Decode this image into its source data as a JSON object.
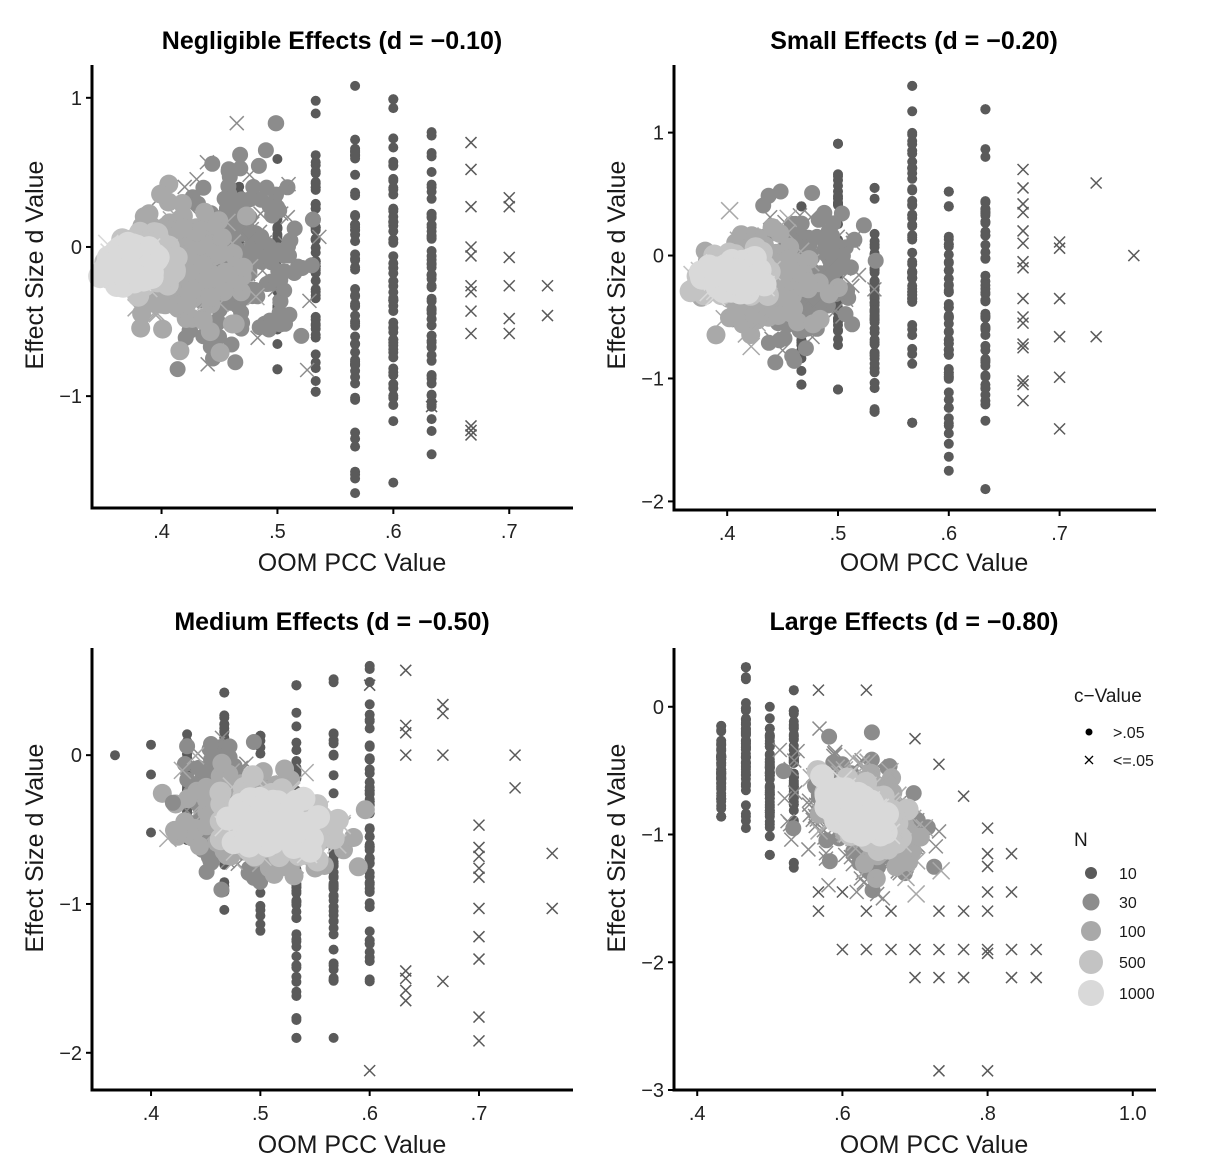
{
  "chart_data": [
    {
      "type": "scatter",
      "title": "Negligible Effects (d = −0.10)",
      "xlabel": "OOM PCC Value",
      "ylabel": "Effect Size d Value",
      "xlim": [
        0.34,
        0.755
      ],
      "ylim": [
        -1.75,
        1.22
      ],
      "xticks": [
        0.4,
        0.5,
        0.6,
        0.7
      ],
      "xtick_labels": [
        ".4",
        ".5",
        ".6",
        ".7"
      ],
      "yticks": [
        1,
        0,
        -1
      ],
      "ytick_labels": [
        "1",
        "0",
        "−1"
      ],
      "grid": false,
      "clusters": [
        {
          "n": 10,
          "sig": false,
          "x": 0.533,
          "y_range": [
            -0.97,
            0.98
          ]
        },
        {
          "n": 10,
          "sig": false,
          "x": 0.567,
          "y_range": [
            -1.65,
            1.08
          ]
        },
        {
          "n": 10,
          "sig": false,
          "x": 0.6,
          "y_range": [
            -1.58,
            0.99
          ]
        },
        {
          "n": 10,
          "sig": false,
          "x": 0.633,
          "y_range": [
            -1.39,
            0.77
          ]
        },
        {
          "n": 10,
          "sig": false,
          "x": 0.5,
          "y_range": [
            -0.82,
            0.59
          ]
        },
        {
          "n": 10,
          "sig": false,
          "x": 0.467,
          "y_range": [
            -0.4,
            0.51
          ]
        },
        {
          "n": 30,
          "sig": false,
          "cx": 0.47,
          "cy": -0.05,
          "rx": 0.045,
          "ry": 0.55
        },
        {
          "n": 100,
          "sig": false,
          "cx": 0.42,
          "cy": -0.1,
          "rx": 0.04,
          "ry": 0.38
        },
        {
          "n": 500,
          "sig": false,
          "cx": 0.385,
          "cy": -0.1,
          "rx": 0.025,
          "ry": 0.15
        },
        {
          "n": 1000,
          "sig": false,
          "cx": 0.375,
          "cy": -0.1,
          "rx": 0.018,
          "ry": 0.1
        }
      ],
      "crosses": [
        {
          "x": 0.667,
          "y": 0.7
        },
        {
          "x": 0.667,
          "y": 0.52
        },
        {
          "x": 0.667,
          "y": 0.27
        },
        {
          "x": 0.667,
          "y": 0.0
        },
        {
          "x": 0.667,
          "y": -0.06
        },
        {
          "x": 0.667,
          "y": -0.26
        },
        {
          "x": 0.667,
          "y": -0.3
        },
        {
          "x": 0.667,
          "y": -0.43
        },
        {
          "x": 0.667,
          "y": -0.58
        },
        {
          "x": 0.667,
          "y": -1.2
        },
        {
          "x": 0.667,
          "y": -1.23
        },
        {
          "x": 0.667,
          "y": -1.26
        },
        {
          "x": 0.7,
          "y": 0.33
        },
        {
          "x": 0.7,
          "y": 0.27
        },
        {
          "x": 0.7,
          "y": -0.07
        },
        {
          "x": 0.7,
          "y": -0.26
        },
        {
          "x": 0.7,
          "y": -0.48
        },
        {
          "x": 0.7,
          "y": -0.58
        },
        {
          "x": 0.733,
          "y": -0.26
        },
        {
          "x": 0.733,
          "y": -0.46
        },
        {
          "x": 0.633,
          "y": -1.07
        }
      ]
    },
    {
      "type": "scatter",
      "title": "Small Effects (d = −0.20)",
      "xlabel": "OOM PCC Value",
      "ylabel": "Effect Size d Value",
      "xlim": [
        0.352,
        0.787
      ],
      "ylim": [
        -2.07,
        1.55
      ],
      "xticks": [
        0.4,
        0.5,
        0.6,
        0.7
      ],
      "xtick_labels": [
        ".4",
        ".5",
        ".6",
        ".7"
      ],
      "yticks": [
        1,
        0,
        -1,
        -2
      ],
      "ytick_labels": [
        "1",
        "0",
        "−1",
        "−2"
      ],
      "grid": false,
      "clusters": [
        {
          "n": 10,
          "sig": false,
          "x": 0.533,
          "y_range": [
            -1.27,
            0.55
          ]
        },
        {
          "n": 10,
          "sig": false,
          "x": 0.567,
          "y_range": [
            -1.36,
            1.38
          ]
        },
        {
          "n": 10,
          "sig": false,
          "x": 0.6,
          "y_range": [
            -1.75,
            0.52
          ]
        },
        {
          "n": 10,
          "sig": false,
          "x": 0.633,
          "y_range": [
            -1.9,
            1.19
          ]
        },
        {
          "n": 10,
          "sig": false,
          "x": 0.5,
          "y_range": [
            -1.09,
            0.91
          ]
        },
        {
          "n": 10,
          "sig": false,
          "x": 0.467,
          "y_range": [
            -1.05,
            0.4
          ]
        },
        {
          "n": 30,
          "sig": false,
          "cx": 0.47,
          "cy": -0.2,
          "rx": 0.04,
          "ry": 0.5
        },
        {
          "n": 100,
          "sig": false,
          "cx": 0.43,
          "cy": -0.18,
          "rx": 0.045,
          "ry": 0.35
        },
        {
          "n": 500,
          "sig": false,
          "cx": 0.41,
          "cy": -0.18,
          "rx": 0.028,
          "ry": 0.15
        },
        {
          "n": 1000,
          "sig": false,
          "cx": 0.405,
          "cy": -0.18,
          "rx": 0.018,
          "ry": 0.1
        }
      ],
      "crosses": [
        {
          "x": 0.667,
          "y": 0.7
        },
        {
          "x": 0.667,
          "y": 0.55
        },
        {
          "x": 0.667,
          "y": 0.42
        },
        {
          "x": 0.667,
          "y": 0.35
        },
        {
          "x": 0.667,
          "y": 0.2
        },
        {
          "x": 0.667,
          "y": 0.1
        },
        {
          "x": 0.667,
          "y": -0.05
        },
        {
          "x": 0.667,
          "y": -0.1
        },
        {
          "x": 0.667,
          "y": -0.35
        },
        {
          "x": 0.667,
          "y": -0.5
        },
        {
          "x": 0.667,
          "y": -0.55
        },
        {
          "x": 0.667,
          "y": -0.72
        },
        {
          "x": 0.667,
          "y": -0.75
        },
        {
          "x": 0.667,
          "y": -1.02
        },
        {
          "x": 0.667,
          "y": -1.05
        },
        {
          "x": 0.667,
          "y": -1.18
        },
        {
          "x": 0.7,
          "y": 0.11
        },
        {
          "x": 0.7,
          "y": 0.06
        },
        {
          "x": 0.7,
          "y": -0.35
        },
        {
          "x": 0.7,
          "y": -0.66
        },
        {
          "x": 0.7,
          "y": -0.99
        },
        {
          "x": 0.7,
          "y": -1.41
        },
        {
          "x": 0.733,
          "y": 0.59
        },
        {
          "x": 0.733,
          "y": -0.66
        },
        {
          "x": 0.767,
          "y": 0.0
        }
      ]
    },
    {
      "type": "scatter",
      "title": "Medium Effects (d = −0.50)",
      "xlabel": "OOM PCC Value",
      "ylabel": "Effect Size d Value",
      "xlim": [
        0.346,
        0.786
      ],
      "ylim": [
        -2.25,
        0.72
      ],
      "xticks": [
        0.4,
        0.5,
        0.6,
        0.7
      ],
      "xtick_labels": [
        ".4",
        ".5",
        ".6",
        ".7"
      ],
      "yticks": [
        0,
        -1,
        -2
      ],
      "ytick_labels": [
        "0",
        "−1",
        "−2"
      ],
      "grid": false,
      "clusters": [
        {
          "n": 10,
          "sig": false,
          "x": 0.433,
          "y_range": [
            -0.57,
            0.14
          ]
        },
        {
          "n": 10,
          "sig": false,
          "x": 0.467,
          "y_range": [
            -1.04,
            0.42
          ]
        },
        {
          "n": 10,
          "sig": false,
          "x": 0.5,
          "y_range": [
            -1.18,
            0.13
          ]
        },
        {
          "n": 10,
          "sig": false,
          "x": 0.533,
          "y_range": [
            -1.9,
            0.47
          ]
        },
        {
          "n": 10,
          "sig": false,
          "x": 0.567,
          "y_range": [
            -1.9,
            0.51
          ]
        },
        {
          "n": 10,
          "sig": false,
          "x": 0.6,
          "y_range": [
            -1.52,
            0.6
          ]
        },
        {
          "n": 30,
          "sig": false,
          "cx": 0.47,
          "cy": -0.35,
          "rx": 0.03,
          "ry": 0.35
        },
        {
          "n": 100,
          "sig": false,
          "cx": 0.5,
          "cy": -0.45,
          "rx": 0.06,
          "ry": 0.3
        },
        {
          "n": 500,
          "sig": false,
          "cx": 0.51,
          "cy": -0.45,
          "rx": 0.04,
          "ry": 0.18
        },
        {
          "n": 1000,
          "sig": false,
          "cx": 0.51,
          "cy": -0.45,
          "rx": 0.028,
          "ry": 0.12
        }
      ],
      "points": [
        {
          "x": 0.367,
          "y": 0.0,
          "n": 10
        },
        {
          "x": 0.4,
          "y": 0.07,
          "n": 10
        },
        {
          "x": 0.4,
          "y": -0.13,
          "n": 10
        },
        {
          "x": 0.4,
          "y": -0.52,
          "n": 10
        },
        {
          "x": 0.433,
          "y": 0.06,
          "n": 30
        },
        {
          "x": 0.42,
          "y": -0.32,
          "n": 30
        }
      ],
      "crosses": [
        {
          "x": 0.633,
          "y": 0.57
        },
        {
          "x": 0.6,
          "y": 0.47
        },
        {
          "x": 0.667,
          "y": 0.34
        },
        {
          "x": 0.667,
          "y": 0.28
        },
        {
          "x": 0.633,
          "y": 0.2
        },
        {
          "x": 0.633,
          "y": 0.15
        },
        {
          "x": 0.633,
          "y": 0.0
        },
        {
          "x": 0.667,
          "y": 0.0
        },
        {
          "x": 0.733,
          "y": 0.0
        },
        {
          "x": 0.733,
          "y": -0.22
        },
        {
          "x": 0.7,
          "y": -0.47
        },
        {
          "x": 0.7,
          "y": -0.62
        },
        {
          "x": 0.7,
          "y": -0.68
        },
        {
          "x": 0.7,
          "y": -0.76
        },
        {
          "x": 0.7,
          "y": -0.82
        },
        {
          "x": 0.7,
          "y": -1.03
        },
        {
          "x": 0.7,
          "y": -1.22
        },
        {
          "x": 0.7,
          "y": -1.37
        },
        {
          "x": 0.7,
          "y": -1.76
        },
        {
          "x": 0.7,
          "y": -1.92
        },
        {
          "x": 0.767,
          "y": -0.66
        },
        {
          "x": 0.767,
          "y": -1.03
        },
        {
          "x": 0.667,
          "y": -1.52
        },
        {
          "x": 0.633,
          "y": -1.45
        },
        {
          "x": 0.633,
          "y": -1.5
        },
        {
          "x": 0.633,
          "y": -1.58
        },
        {
          "x": 0.633,
          "y": -1.65
        },
        {
          "x": 0.6,
          "y": -2.12
        }
      ]
    },
    {
      "type": "scatter",
      "title": "Large Effects (d = −0.80)",
      "xlabel": "OOM PCC Value",
      "ylabel": "Effect Size d Value",
      "xlim": [
        0.368,
        1.032
      ],
      "ylim": [
        -3.0,
        0.46
      ],
      "xticks": [
        0.4,
        0.6,
        0.8,
        1.0
      ],
      "xtick_labels": [
        ".4",
        ".6",
        ".8",
        "1.0"
      ],
      "yticks": [
        0,
        -1,
        -2,
        -3
      ],
      "ytick_labels": [
        "0",
        "−1",
        "−2",
        "−3"
      ],
      "grid": false,
      "clusters": [
        {
          "n": 10,
          "sig": false,
          "x": 0.433,
          "y_range": [
            -0.86,
            -0.15
          ]
        },
        {
          "n": 10,
          "sig": false,
          "x": 0.467,
          "y_range": [
            -0.95,
            0.31
          ]
        },
        {
          "n": 10,
          "sig": false,
          "x": 0.5,
          "y_range": [
            -1.16,
            0.0
          ]
        },
        {
          "n": 10,
          "sig": false,
          "x": 0.533,
          "y_range": [
            -1.26,
            0.13
          ]
        },
        {
          "n": 30,
          "sig": true,
          "cx": 0.62,
          "cy": -0.85,
          "rx": 0.08,
          "ry": 0.45
        },
        {
          "n": 100,
          "sig": true,
          "cx": 0.64,
          "cy": -0.85,
          "rx": 0.06,
          "ry": 0.3
        },
        {
          "n": 500,
          "sig": false,
          "cx": 0.63,
          "cy": -0.82,
          "rx": 0.045,
          "ry": 0.2
        },
        {
          "n": 1000,
          "sig": false,
          "cx": 0.62,
          "cy": -0.8,
          "rx": 0.03,
          "ry": 0.13
        }
      ],
      "crosses": [
        {
          "x": 0.567,
          "y": 0.13
        },
        {
          "x": 0.633,
          "y": 0.13
        },
        {
          "x": 0.7,
          "y": -0.25
        },
        {
          "x": 0.733,
          "y": -0.45
        },
        {
          "x": 0.767,
          "y": -0.7
        },
        {
          "x": 0.8,
          "y": -0.95
        },
        {
          "x": 0.8,
          "y": -1.15
        },
        {
          "x": 0.833,
          "y": -1.15
        },
        {
          "x": 0.8,
          "y": -1.25
        },
        {
          "x": 0.8,
          "y": -1.45
        },
        {
          "x": 0.833,
          "y": -1.45
        },
        {
          "x": 0.8,
          "y": -1.6
        },
        {
          "x": 0.767,
          "y": -1.6
        },
        {
          "x": 0.733,
          "y": -1.6
        },
        {
          "x": 0.567,
          "y": -1.45
        },
        {
          "x": 0.567,
          "y": -1.6
        },
        {
          "x": 0.6,
          "y": -1.45
        },
        {
          "x": 0.633,
          "y": -1.6
        },
        {
          "x": 0.667,
          "y": -1.6
        },
        {
          "x": 0.6,
          "y": -1.9
        },
        {
          "x": 0.633,
          "y": -1.9
        },
        {
          "x": 0.667,
          "y": -1.9
        },
        {
          "x": 0.7,
          "y": -1.9
        },
        {
          "x": 0.733,
          "y": -1.9
        },
        {
          "x": 0.767,
          "y": -1.9
        },
        {
          "x": 0.8,
          "y": -1.9
        },
        {
          "x": 0.8,
          "y": -1.93
        },
        {
          "x": 0.833,
          "y": -1.9
        },
        {
          "x": 0.867,
          "y": -1.9
        },
        {
          "x": 0.7,
          "y": -2.12
        },
        {
          "x": 0.733,
          "y": -2.12
        },
        {
          "x": 0.767,
          "y": -2.12
        },
        {
          "x": 0.833,
          "y": -2.12
        },
        {
          "x": 0.867,
          "y": -2.12
        },
        {
          "x": 0.733,
          "y": -2.85
        },
        {
          "x": 0.8,
          "y": -2.85
        }
      ]
    }
  ],
  "legend": {
    "placement": "right-of-large-effects-panel",
    "c_value": {
      "title": "c−Value",
      "entries": [
        {
          "label": ">.05",
          "shape": "dot"
        },
        {
          "label": "<=.05",
          "shape": "cross"
        }
      ]
    },
    "n": {
      "title": "N",
      "entries": [
        {
          "label": "10",
          "color": "#5a5a5a"
        },
        {
          "label": "30",
          "color": "#8c8c8c"
        },
        {
          "label": "100",
          "color": "#a9a9a9"
        },
        {
          "label": "500",
          "color": "#c3c3c3"
        },
        {
          "label": "1000",
          "color": "#d9d9d9"
        }
      ]
    }
  },
  "colors": {
    "n10": "#5a5a5a",
    "n30": "#8c8c8c",
    "n100": "#a9a9a9",
    "n500": "#c3c3c3",
    "n1000": "#d9d9d9",
    "axis": "#000000"
  }
}
